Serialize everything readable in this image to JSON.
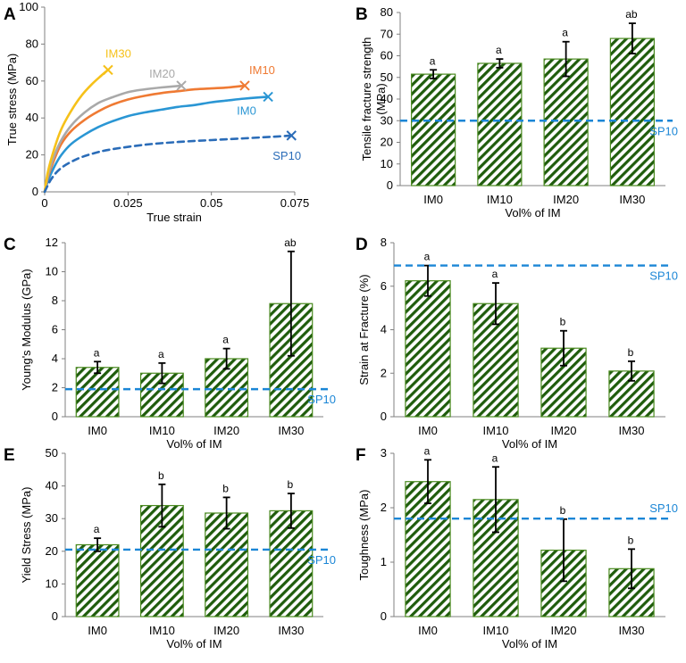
{
  "colors": {
    "bar_stroke": "#4a8a1f",
    "bar_hatch": "#1f5c0c",
    "reference": "#1b86d6",
    "axis": "#808080",
    "IM0": "#2a96d4",
    "IM10": "#ef7a33",
    "IM20": "#a9a9a9",
    "IM30": "#f6c119",
    "SP10": "#2a6cb8"
  },
  "chart_data": [
    {
      "id": "A",
      "panel_label": "A",
      "type": "line",
      "xlabel": "True strain",
      "ylabel": "True stress (MPa)",
      "xlim": [
        0,
        0.075
      ],
      "ylim": [
        0,
        100
      ],
      "x_ticks": [
        0,
        0.025,
        0.05,
        0.075
      ],
      "x_tick_labels": [
        "0",
        "0.025",
        "0.05",
        "0.075"
      ],
      "y_ticks": [
        0,
        20,
        40,
        60,
        80,
        100
      ],
      "y_tick_labels": [
        "0",
        "20",
        "40",
        "60",
        "80",
        "100"
      ],
      "series": [
        {
          "name": "IM0",
          "color_key": "IM0",
          "dashed": false,
          "x": [
            0,
            0.001,
            0.003,
            0.005,
            0.008,
            0.012,
            0.016,
            0.02,
            0.025,
            0.03,
            0.035,
            0.04,
            0.045,
            0.05,
            0.055,
            0.06,
            0.067
          ],
          "y": [
            0,
            6,
            14,
            20,
            26,
            31,
            35,
            38,
            41,
            43,
            44.5,
            46,
            47,
            48.5,
            49.5,
            50.5,
            51.5
          ]
        },
        {
          "name": "IM10",
          "color_key": "IM10",
          "dashed": false,
          "x": [
            0,
            0.001,
            0.003,
            0.005,
            0.008,
            0.012,
            0.016,
            0.02,
            0.025,
            0.03,
            0.035,
            0.04,
            0.045,
            0.05,
            0.055,
            0.06
          ],
          "y": [
            0,
            8,
            18,
            26,
            33,
            39,
            43.5,
            47,
            50,
            52,
            53.5,
            54.5,
            55.5,
            56,
            56.5,
            57.5
          ]
        },
        {
          "name": "IM20",
          "color_key": "IM20",
          "dashed": false,
          "x": [
            0,
            0.001,
            0.003,
            0.005,
            0.008,
            0.012,
            0.016,
            0.02,
            0.025,
            0.03,
            0.035,
            0.041
          ],
          "y": [
            0,
            9,
            20,
            28,
            36,
            43,
            48,
            51,
            54,
            55.5,
            56.5,
            57.5
          ]
        },
        {
          "name": "IM30",
          "color_key": "IM30",
          "dashed": false,
          "x": [
            0,
            0.001,
            0.003,
            0.005,
            0.008,
            0.011,
            0.014,
            0.017,
            0.019
          ],
          "y": [
            0,
            11,
            24,
            34,
            44,
            52,
            58,
            63,
            66
          ]
        },
        {
          "name": "SP10",
          "color_key": "SP10",
          "dashed": true,
          "x": [
            0,
            0.002,
            0.005,
            0.01,
            0.015,
            0.02,
            0.03,
            0.04,
            0.05,
            0.06,
            0.07,
            0.074
          ],
          "y": [
            0,
            7,
            13,
            18,
            21,
            23,
            25.5,
            27,
            28,
            29,
            30,
            30.5
          ]
        }
      ],
      "end_labels": [
        "IM30",
        "IM20",
        "IM10",
        "IM0",
        "SP10"
      ]
    },
    {
      "id": "B",
      "panel_label": "B",
      "type": "bar",
      "xlabel": "Vol% of IM",
      "ylabel_lines": [
        "Tensile fracture strength",
        "(MPa)"
      ],
      "categories": [
        "IM0",
        "IM10",
        "IM20",
        "IM30"
      ],
      "values": [
        51.5,
        56.5,
        58.5,
        68
      ],
      "errors": [
        2,
        2,
        8,
        7
      ],
      "significance": [
        "a",
        "a",
        "a",
        "ab"
      ],
      "ylim": [
        0,
        80
      ],
      "y_ticks": [
        0,
        10,
        20,
        30,
        40,
        50,
        60,
        70,
        80
      ],
      "y_tick_labels": [
        "0",
        "10",
        "20",
        "30",
        "40",
        "50",
        "60",
        "70",
        "80"
      ],
      "reference_line": {
        "label": "SP10",
        "value": 30,
        "label_pos": "below-right"
      }
    },
    {
      "id": "C",
      "panel_label": "C",
      "type": "bar",
      "xlabel": "Vol% of IM",
      "ylabel_lines": [
        "Young's Modulus (GPa)"
      ],
      "categories": [
        "IM0",
        "IM10",
        "IM20",
        "IM30"
      ],
      "values": [
        3.4,
        3.0,
        4.0,
        7.8
      ],
      "errors": [
        0.4,
        0.7,
        0.7,
        3.6
      ],
      "significance": [
        "a",
        "a",
        "a",
        "ab"
      ],
      "ylim": [
        0,
        12
      ],
      "y_ticks": [
        0,
        2,
        4,
        6,
        8,
        10,
        12
      ],
      "y_tick_labels": [
        "0",
        "2",
        "4",
        "6",
        "8",
        "10",
        "12"
      ],
      "reference_line": {
        "label": "SP10",
        "value": 1.9,
        "label_pos": "below-right"
      }
    },
    {
      "id": "D",
      "panel_label": "D",
      "type": "bar",
      "xlabel": "Vol% of IM",
      "ylabel_lines": [
        "Strain at Fracture (%)"
      ],
      "categories": [
        "IM0",
        "IM10",
        "IM20",
        "IM30"
      ],
      "values": [
        6.25,
        5.2,
        3.15,
        2.1
      ],
      "errors": [
        0.7,
        0.95,
        0.8,
        0.45
      ],
      "significance": [
        "a",
        "a",
        "b",
        "b"
      ],
      "ylim": [
        0,
        8
      ],
      "y_ticks": [
        0,
        2,
        4,
        6,
        8
      ],
      "y_tick_labels": [
        "0",
        "2",
        "4",
        "6",
        "8"
      ],
      "reference_line": {
        "label": "SP10",
        "value": 6.95,
        "label_pos": "below-right"
      }
    },
    {
      "id": "E",
      "panel_label": "E",
      "type": "bar",
      "xlabel": "Vol% of IM",
      "ylabel_lines": [
        "Yield Stress (MPa)"
      ],
      "categories": [
        "IM0",
        "IM10",
        "IM20",
        "IM30"
      ],
      "values": [
        22,
        34,
        31.7,
        32.4
      ],
      "errors": [
        2,
        6.5,
        4.8,
        5.3
      ],
      "significance": [
        "a",
        "b",
        "b",
        "b"
      ],
      "ylim": [
        0,
        50
      ],
      "y_ticks": [
        0,
        10,
        20,
        30,
        40,
        50
      ],
      "y_tick_labels": [
        "0",
        "10",
        "20",
        "30",
        "40",
        "50"
      ],
      "reference_line": {
        "label": "SP10",
        "value": 20.5,
        "label_pos": "below-right"
      }
    },
    {
      "id": "F",
      "panel_label": "F",
      "type": "bar",
      "xlabel": "Vol% of IM",
      "ylabel_lines": [
        "Toughness (MPa)"
      ],
      "categories": [
        "IM0",
        "IM10",
        "IM20",
        "IM30"
      ],
      "values": [
        2.48,
        2.15,
        1.22,
        0.88
      ],
      "errors": [
        0.4,
        0.6,
        0.57,
        0.36
      ],
      "significance": [
        "a",
        "a",
        "b",
        "b"
      ],
      "ylim": [
        0,
        3
      ],
      "y_ticks": [
        0,
        1,
        2,
        3
      ],
      "y_tick_labels": [
        "0",
        "1",
        "2",
        "3"
      ],
      "reference_line": {
        "label": "SP10",
        "value": 1.8,
        "label_pos": "above-right"
      }
    }
  ]
}
